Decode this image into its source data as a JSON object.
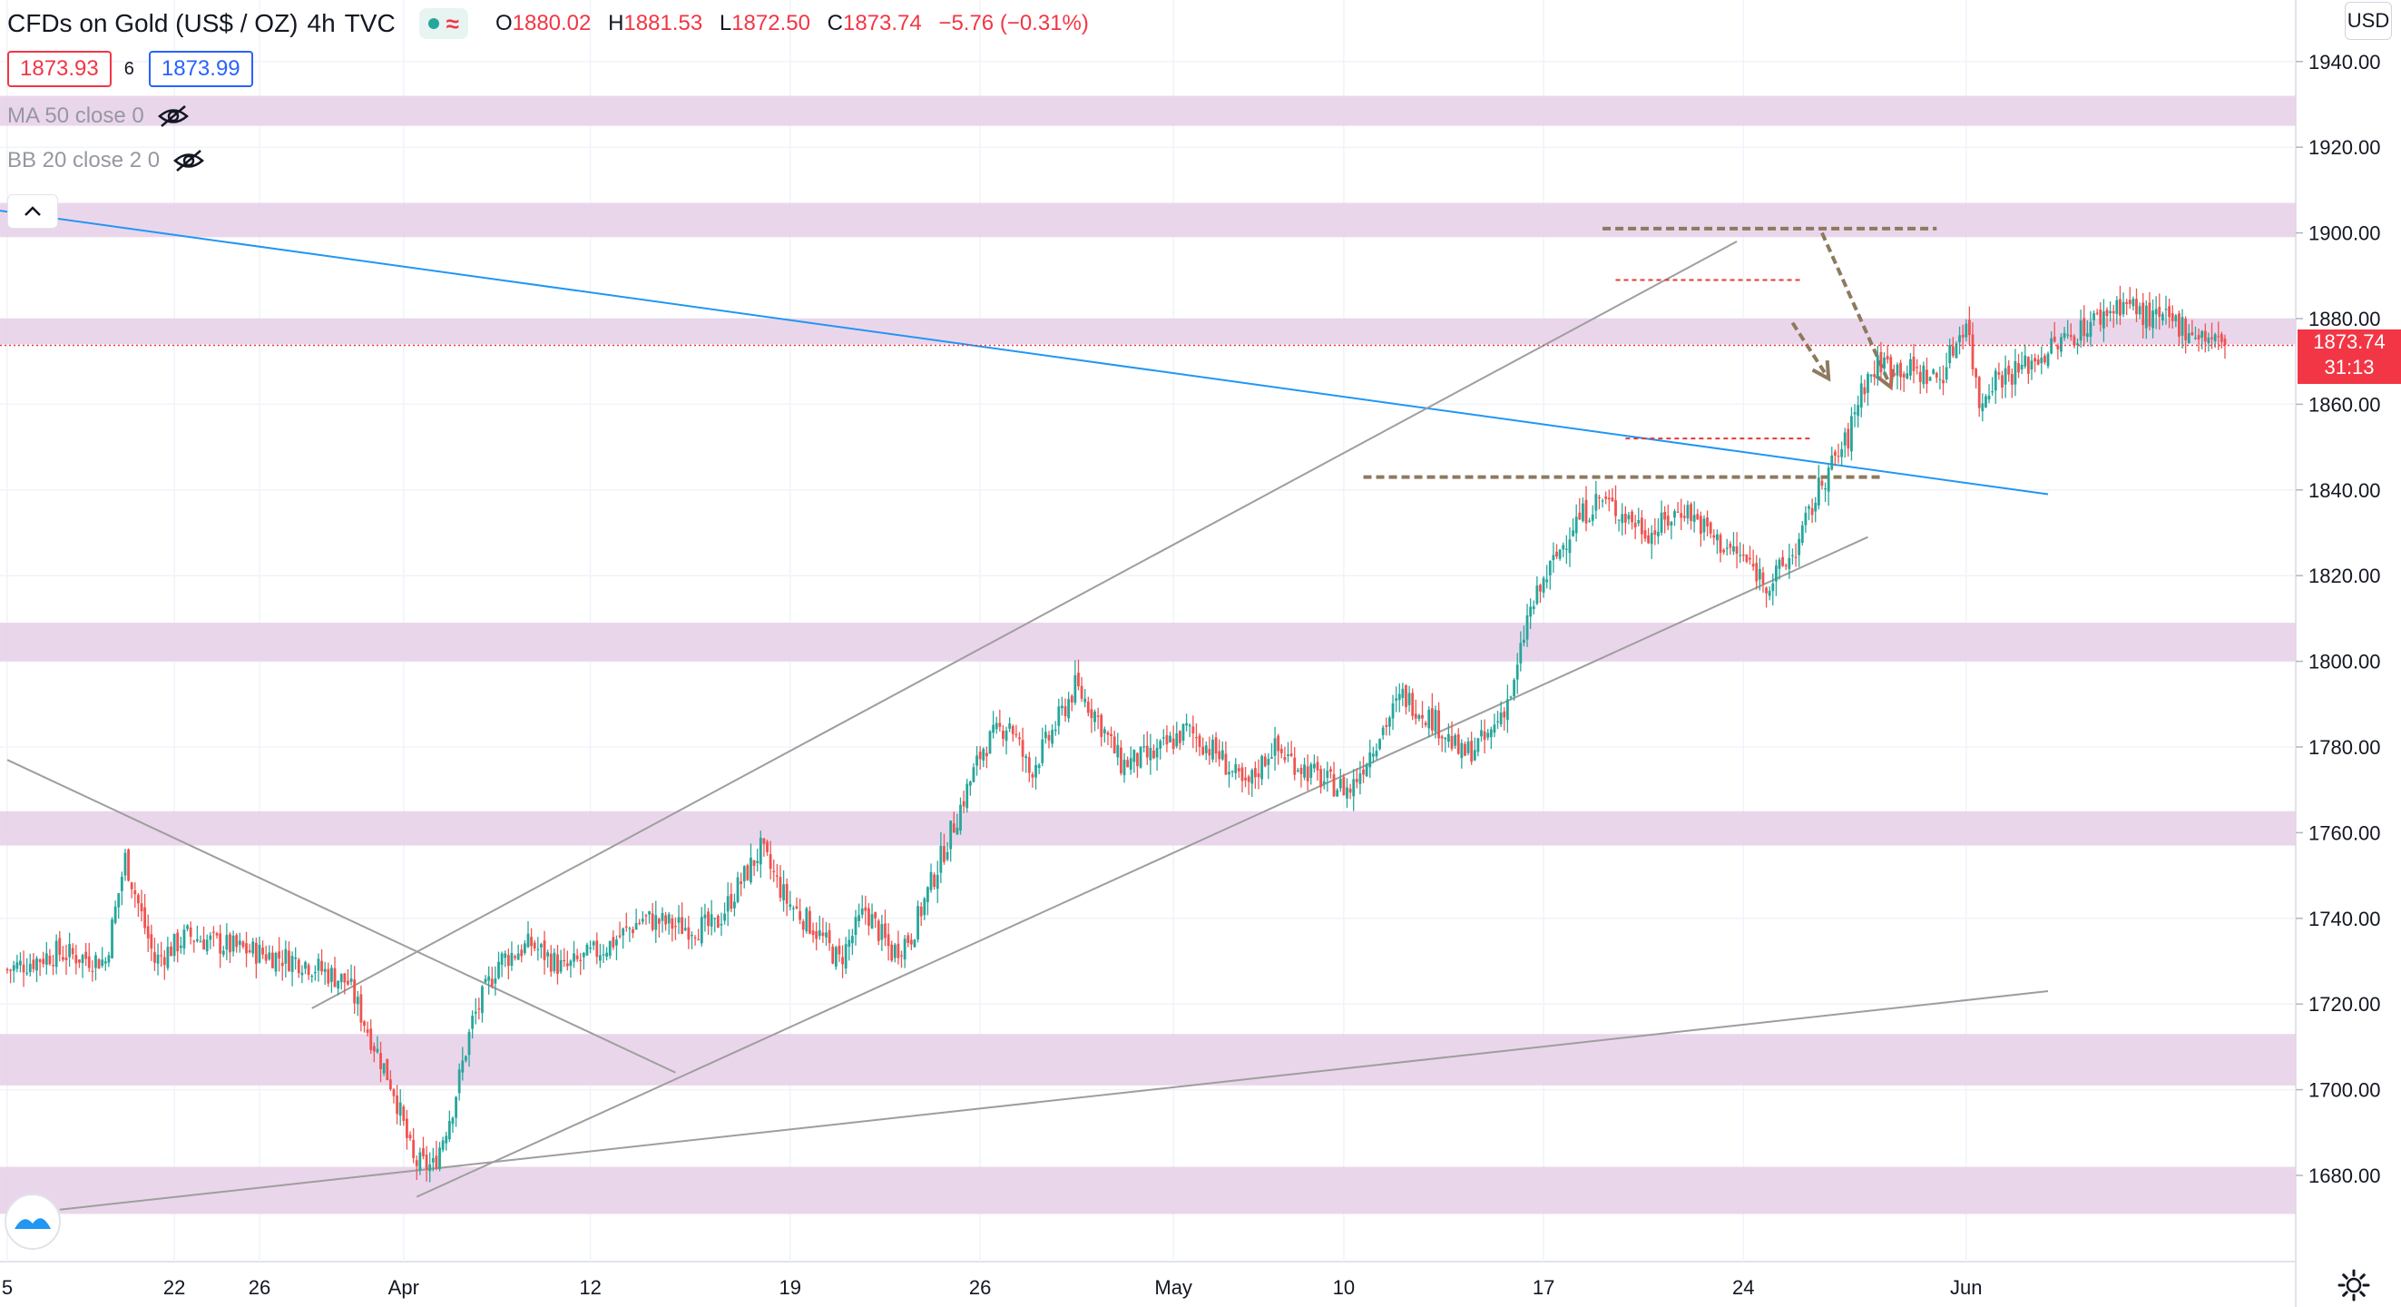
{
  "header": {
    "symbol": "CFDs on Gold (US$ / OZ)",
    "interval": "4h",
    "source": "TVC",
    "wave_icon": "≈",
    "ohlc": {
      "o_label": "O",
      "o": "1880.02",
      "h_label": "H",
      "h": "1881.53",
      "l_label": "L",
      "l": "1872.50",
      "c_label": "C",
      "c": "1873.74",
      "change": "−5.76 (−0.31%)"
    }
  },
  "quote": {
    "bid": "1873.93",
    "spread": "6",
    "ask": "1873.99"
  },
  "indicators": [
    {
      "label": "MA 50 close 0",
      "icon": "eye-off-icon"
    },
    {
      "label": "BB 20 close 2 0",
      "icon": "eye-off-icon"
    }
  ],
  "currency": "USD",
  "last_price": {
    "price": "1873.74",
    "countdown": "31:13"
  },
  "colors": {
    "up": "#26a69a",
    "down": "#ef5350",
    "zone": "#e6cfe8",
    "trendline": "#2196f3",
    "channel": "#9e9e9e",
    "arrow": "#8d7a5e",
    "range": "#e53935"
  },
  "chart_data": {
    "type": "candlestick",
    "title": "CFDs on Gold (US$ / OZ)",
    "interval": "4h",
    "ylim": [
      1663,
      1952
    ],
    "y_ticks": [
      "1680.00",
      "1700.00",
      "1720.00",
      "1740.00",
      "1760.00",
      "1780.00",
      "1800.00",
      "1820.00",
      "1840.00",
      "1860.00",
      "1880.00",
      "1900.00",
      "1920.00",
      "1940.00"
    ],
    "x_ticks": [
      "5",
      "22",
      "26",
      "Apr",
      "12",
      "19",
      "26",
      "May",
      "10",
      "17",
      "24",
      "Jun"
    ],
    "x_tick_bars": [
      0,
      51,
      77,
      121,
      178,
      239,
      297,
      356,
      408,
      469,
      530,
      598
    ],
    "bars_total": 623,
    "last_close": 1873.74,
    "support_resistance_zones": [
      [
        1925,
        1932
      ],
      [
        1899,
        1907
      ],
      [
        1874,
        1880
      ],
      [
        1800,
        1809
      ],
      [
        1757,
        1765
      ],
      [
        1701,
        1713
      ],
      [
        1671,
        1682
      ]
    ],
    "close_path": [
      [
        0,
        1728
      ],
      [
        15,
        1732
      ],
      [
        30,
        1730
      ],
      [
        36,
        1754
      ],
      [
        45,
        1730
      ],
      [
        55,
        1736
      ],
      [
        70,
        1733
      ],
      [
        90,
        1730
      ],
      [
        104,
        1725
      ],
      [
        110,
        1714
      ],
      [
        118,
        1700
      ],
      [
        124,
        1683
      ],
      [
        130,
        1682
      ],
      [
        136,
        1696
      ],
      [
        142,
        1716
      ],
      [
        150,
        1730
      ],
      [
        160,
        1734
      ],
      [
        170,
        1728
      ],
      [
        184,
        1734
      ],
      [
        194,
        1740
      ],
      [
        206,
        1738
      ],
      [
        216,
        1738
      ],
      [
        222,
        1746
      ],
      [
        230,
        1756
      ],
      [
        238,
        1744
      ],
      [
        246,
        1738
      ],
      [
        254,
        1730
      ],
      [
        262,
        1742
      ],
      [
        270,
        1732
      ],
      [
        276,
        1736
      ],
      [
        284,
        1752
      ],
      [
        292,
        1768
      ],
      [
        298,
        1780
      ],
      [
        306,
        1786
      ],
      [
        312,
        1774
      ],
      [
        318,
        1782
      ],
      [
        326,
        1794
      ],
      [
        332,
        1788
      ],
      [
        340,
        1776
      ],
      [
        350,
        1778
      ],
      [
        360,
        1784
      ],
      [
        370,
        1778
      ],
      [
        378,
        1770
      ],
      [
        386,
        1780
      ],
      [
        394,
        1776
      ],
      [
        402,
        1772
      ],
      [
        410,
        1770
      ],
      [
        418,
        1782
      ],
      [
        426,
        1792
      ],
      [
        436,
        1786
      ],
      [
        444,
        1778
      ],
      [
        452,
        1782
      ],
      [
        460,
        1794
      ],
      [
        464,
        1810
      ],
      [
        470,
        1820
      ],
      [
        478,
        1832
      ],
      [
        486,
        1838
      ],
      [
        494,
        1834
      ],
      [
        502,
        1830
      ],
      [
        512,
        1836
      ],
      [
        522,
        1828
      ],
      [
        530,
        1824
      ],
      [
        538,
        1818
      ],
      [
        546,
        1826
      ],
      [
        554,
        1842
      ],
      [
        562,
        1852
      ],
      [
        566,
        1864
      ],
      [
        572,
        1870
      ],
      [
        580,
        1868
      ],
      [
        590,
        1866
      ],
      [
        598,
        1880
      ],
      [
        602,
        1860
      ],
      [
        606,
        1866
      ],
      [
        614,
        1868
      ],
      [
        622,
        1872
      ],
      [
        630,
        1876
      ],
      [
        638,
        1880
      ],
      [
        646,
        1884
      ],
      [
        654,
        1880
      ],
      [
        662,
        1879
      ],
      [
        670,
        1876
      ],
      [
        677,
        1873.74
      ]
    ],
    "annotations": {
      "blue_trendline": [
        [
          -10,
          1906
        ],
        [
          623,
          1839
        ]
      ],
      "channel_upper": [
        [
          93,
          1719
        ],
        [
          528,
          1898
        ]
      ],
      "channel_lower": [
        [
          125,
          1675
        ],
        [
          568,
          1829
        ]
      ],
      "long_support": [
        [
          16,
          1672
        ],
        [
          623,
          1723
        ]
      ],
      "descending_line": [
        [
          0,
          1777
        ],
        [
          204,
          1704
        ]
      ],
      "resistance_dashed": [
        [
          487,
          1901
        ],
        [
          589,
          1901
        ]
      ],
      "support_dashed": [
        [
          414,
          1843
        ],
        [
          572,
          1843
        ]
      ],
      "range_top": [
        [
          491,
          1889
        ],
        [
          548,
          1889
        ]
      ],
      "range_bottom": [
        [
          494,
          1852
        ],
        [
          551,
          1852
        ]
      ],
      "arrow_short": [
        [
          545,
          1879
        ],
        [
          556,
          1866
        ]
      ],
      "arrow_long": [
        [
          554,
          1900
        ],
        [
          575,
          1864
        ]
      ]
    }
  }
}
